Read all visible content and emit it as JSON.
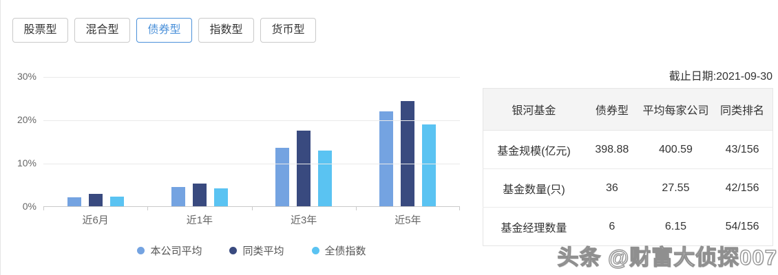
{
  "tabs": {
    "items": [
      "股票型",
      "混合型",
      "债券型",
      "指数型",
      "货币型"
    ],
    "active": "债券型"
  },
  "date_label": "截止日期:2021-09-30",
  "chart_data": {
    "type": "bar",
    "categories": [
      "近6月",
      "近1年",
      "近3年",
      "近5年"
    ],
    "series": [
      {
        "name": "本公司平均",
        "color": "#74a3e1",
        "values": [
          2.1,
          4.5,
          13.5,
          21.9
        ]
      },
      {
        "name": "同类平均",
        "color": "#394a7f",
        "values": [
          2.9,
          5.3,
          17.5,
          24.3
        ]
      },
      {
        "name": "全债指数",
        "color": "#5ac3f2",
        "values": [
          2.2,
          4.2,
          12.9,
          18.9
        ]
      }
    ],
    "unit": "%",
    "ylim": [
      0,
      30
    ],
    "yticks": [
      30,
      20,
      10,
      0
    ],
    "ytick_labels": [
      "30%",
      "20%",
      "10%",
      "0%"
    ],
    "grid": true,
    "legend_position": "bottom",
    "title": "",
    "xlabel": "",
    "ylabel": ""
  },
  "table": {
    "columns": [
      "银河基金",
      "债券型",
      "平均每家公司",
      "同类排名"
    ],
    "rows": [
      [
        "基金规模(亿元)",
        "398.88",
        "400.59",
        "43/156"
      ],
      [
        "基金数量(只)",
        "36",
        "27.55",
        "42/156"
      ],
      [
        "基金经理数量",
        "6",
        "6.15",
        "54/156"
      ]
    ]
  },
  "watermark": "头条 @财富大侦探007",
  "colors": {
    "accent": "#4a90d9",
    "axis": "#c9c9c9",
    "grid": "#e9e9e9",
    "text_primary": "#333333",
    "text_secondary": "#666666",
    "table_header_bg": "#f4f4f4"
  }
}
